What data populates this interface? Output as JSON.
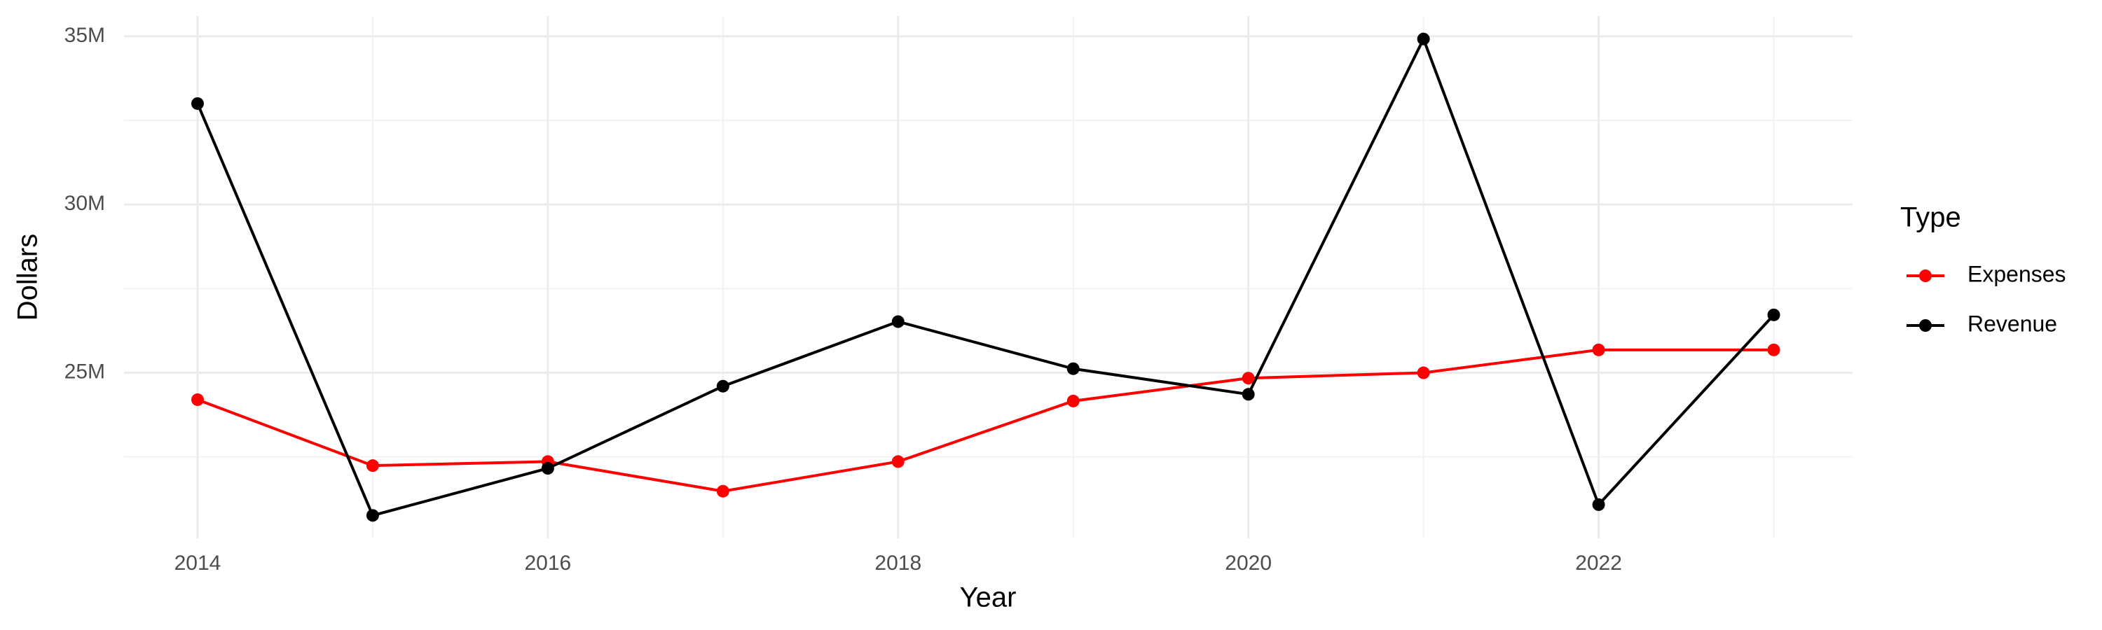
{
  "chart_data": {
    "type": "line",
    "x_label": "Year",
    "y_label": "Dollars",
    "legend_title": "Type",
    "x": [
      2014,
      2015,
      2016,
      2017,
      2018,
      2019,
      2020,
      2021,
      2022,
      2023
    ],
    "series": [
      {
        "name": "Expenses",
        "color": "#ff0000",
        "values": [
          24200000,
          22240000,
          22360000,
          21480000,
          22360000,
          24160000,
          24840000,
          25000000,
          25680000,
          25680000
        ]
      },
      {
        "name": "Revenue",
        "color": "#000000",
        "values": [
          33000000,
          20760000,
          22160000,
          24600000,
          26520000,
          25120000,
          24360000,
          34920000,
          21080000,
          26720000
        ]
      }
    ],
    "xlim": [
      2013.58,
      2023.45
    ],
    "xticks": [
      2014,
      2016,
      2018,
      2020,
      2022
    ],
    "ylim": [
      20080000,
      35600000
    ],
    "yticks": [
      {
        "value": 25000000,
        "label": "25M"
      },
      {
        "value": 30000000,
        "label": "30M"
      },
      {
        "value": 35000000,
        "label": "35M"
      }
    ],
    "grid": true,
    "legend_position": "right"
  }
}
